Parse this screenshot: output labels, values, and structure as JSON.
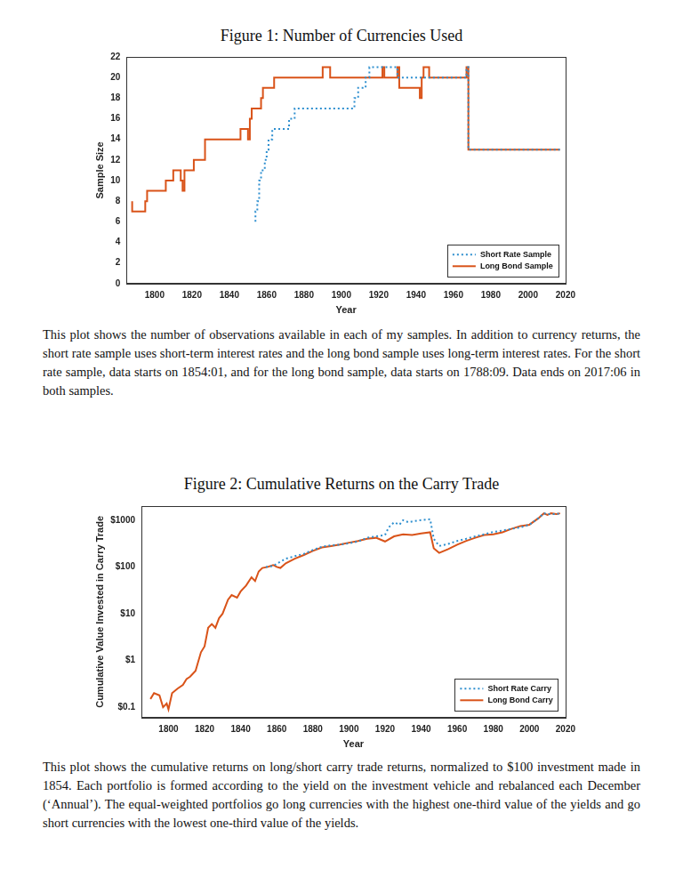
{
  "chart_data": [
    {
      "type": "line",
      "title": "Figure 1: Number of Currencies Used",
      "caption": "This plot shows the number of observations available in each of my samples. In addition to currency returns, the short rate sample uses short-term interest rates and the long bond sample uses long-term interest rates. For the short rate sample, data starts on 1854:01, and for the long bond sample, data starts on 1788:09. Data ends on 2017:06 in both samples.",
      "xlabel": "Year",
      "ylabel": "Sample Size",
      "xlim": [
        1785,
        2020
      ],
      "xticks": [
        1800,
        1820,
        1840,
        1860,
        1880,
        1900,
        1920,
        1940,
        1960,
        1980,
        2000,
        2020
      ],
      "ylim": [
        0,
        22
      ],
      "yticks": [
        0,
        2,
        4,
        6,
        8,
        10,
        12,
        14,
        16,
        18,
        20,
        22
      ],
      "grid": false,
      "legend": "lower right",
      "series": [
        {
          "name": "Short Rate Sample",
          "color": "#2e8fcf",
          "line_style": "dotted",
          "x": [
            1854,
            1855,
            1856,
            1857,
            1859,
            1860,
            1861,
            1863,
            1872,
            1875,
            1907,
            1909,
            1913,
            1915,
            1930,
            1967,
            1968,
            1998,
            2017
          ],
          "values": [
            6,
            7,
            8,
            10,
            11,
            12,
            13,
            14,
            15,
            16,
            17,
            18,
            19,
            20,
            21,
            20,
            21,
            13,
            13
          ]
        },
        {
          "name": "Long Bond Sample",
          "color": "#d95319",
          "line_style": "solid",
          "x": [
            1788,
            1795,
            1796,
            1806,
            1810,
            1814,
            1815,
            1816,
            1821,
            1827,
            1846,
            1850,
            1851,
            1852,
            1857,
            1858,
            1864,
            1890,
            1894,
            1922,
            1923,
            1930,
            1931,
            1942,
            1943,
            1944,
            1947,
            1967,
            1968,
            1998,
            2017
          ],
          "values": [
            8,
            7,
            8,
            9,
            10,
            11,
            10,
            9,
            11,
            12,
            14,
            15,
            14,
            16,
            17,
            18,
            19,
            20,
            21,
            20,
            21,
            20,
            21,
            19,
            18,
            20,
            21,
            20,
            21,
            13,
            13
          ]
        }
      ]
    },
    {
      "type": "line",
      "title": "Figure 2: Cumulative Returns on the Carry Trade",
      "caption": "This plot shows the cumulative returns on long/short carry trade returns, normalized to $100 investment made in 1854. Each portfolio is formed according to the yield on the investment vehicle and rebalanced each December (‘Annual’). The equal-weighted portfolios go long currencies with the highest one-third value of the yields and go short currencies with the lowest one-third value of the yields.",
      "xlabel": "Year",
      "ylabel": "Cumulative Value Invested in Carry Trade",
      "xlim": [
        1785,
        2020
      ],
      "xticks": [
        1800,
        1820,
        1840,
        1860,
        1880,
        1900,
        1920,
        1940,
        1960,
        1980,
        2000,
        2020
      ],
      "log": "y",
      "ylim": [
        0.06,
        2000
      ],
      "yticks": [
        {
          "value": 0.1,
          "label": "$0.1"
        },
        {
          "value": 1,
          "label": "$1"
        },
        {
          "value": 10,
          "label": "$10"
        },
        {
          "value": 100,
          "label": "$100"
        },
        {
          "value": 1000,
          "label": "$1000"
        }
      ],
      "grid": false,
      "legend": "lower right",
      "series": [
        {
          "name": "Short Rate Carry",
          "color": "#2e8fcf",
          "line_style": "dotted",
          "x": [
            1854,
            1858,
            1862,
            1865,
            1870,
            1875,
            1880,
            1885,
            1890,
            1895,
            1900,
            1905,
            1910,
            1915,
            1920,
            1922,
            1925,
            1928,
            1930,
            1933,
            1936,
            1940,
            1945,
            1947,
            1950,
            1955,
            1960,
            1965,
            1970,
            1975,
            1980,
            1985,
            1990,
            1995,
            2000,
            2005,
            2008,
            2010,
            2015,
            2017
          ],
          "values": [
            100,
            105,
            130,
            150,
            170,
            190,
            230,
            270,
            290,
            300,
            320,
            350,
            420,
            450,
            480,
            700,
            900,
            800,
            1000,
            900,
            950,
            1000,
            1050,
            400,
            280,
            310,
            360,
            400,
            450,
            500,
            560,
            600,
            650,
            700,
            800,
            1100,
            1400,
            1350,
            1350,
            1400
          ]
        },
        {
          "name": "Long Bond Carry",
          "color": "#d95319",
          "line_style": "solid",
          "x": [
            1790,
            1792,
            1795,
            1797,
            1799,
            1800,
            1802,
            1805,
            1808,
            1810,
            1812,
            1815,
            1818,
            1820,
            1822,
            1824,
            1826,
            1828,
            1830,
            1833,
            1835,
            1838,
            1840,
            1843,
            1846,
            1848,
            1850,
            1852,
            1855,
            1858,
            1860,
            1862,
            1865,
            1870,
            1875,
            1880,
            1885,
            1890,
            1895,
            1900,
            1905,
            1910,
            1915,
            1920,
            1925,
            1930,
            1935,
            1940,
            1945,
            1947,
            1950,
            1955,
            1960,
            1965,
            1970,
            1975,
            1980,
            1985,
            1990,
            1995,
            2000,
            2005,
            2008,
            2010,
            2012,
            2015,
            2017
          ],
          "values": [
            0.15,
            0.2,
            0.18,
            0.1,
            0.12,
            0.09,
            0.2,
            0.25,
            0.3,
            0.4,
            0.45,
            0.6,
            1.5,
            2,
            5,
            6,
            5,
            8,
            10,
            20,
            25,
            22,
            30,
            40,
            60,
            50,
            80,
            95,
            100,
            110,
            100,
            95,
            120,
            150,
            180,
            220,
            260,
            280,
            300,
            330,
            360,
            400,
            420,
            350,
            450,
            500,
            480,
            520,
            550,
            250,
            200,
            240,
            300,
            360,
            420,
            480,
            500,
            550,
            650,
            750,
            800,
            1100,
            1400,
            1300,
            1400,
            1350,
            1400
          ]
        }
      ]
    }
  ]
}
